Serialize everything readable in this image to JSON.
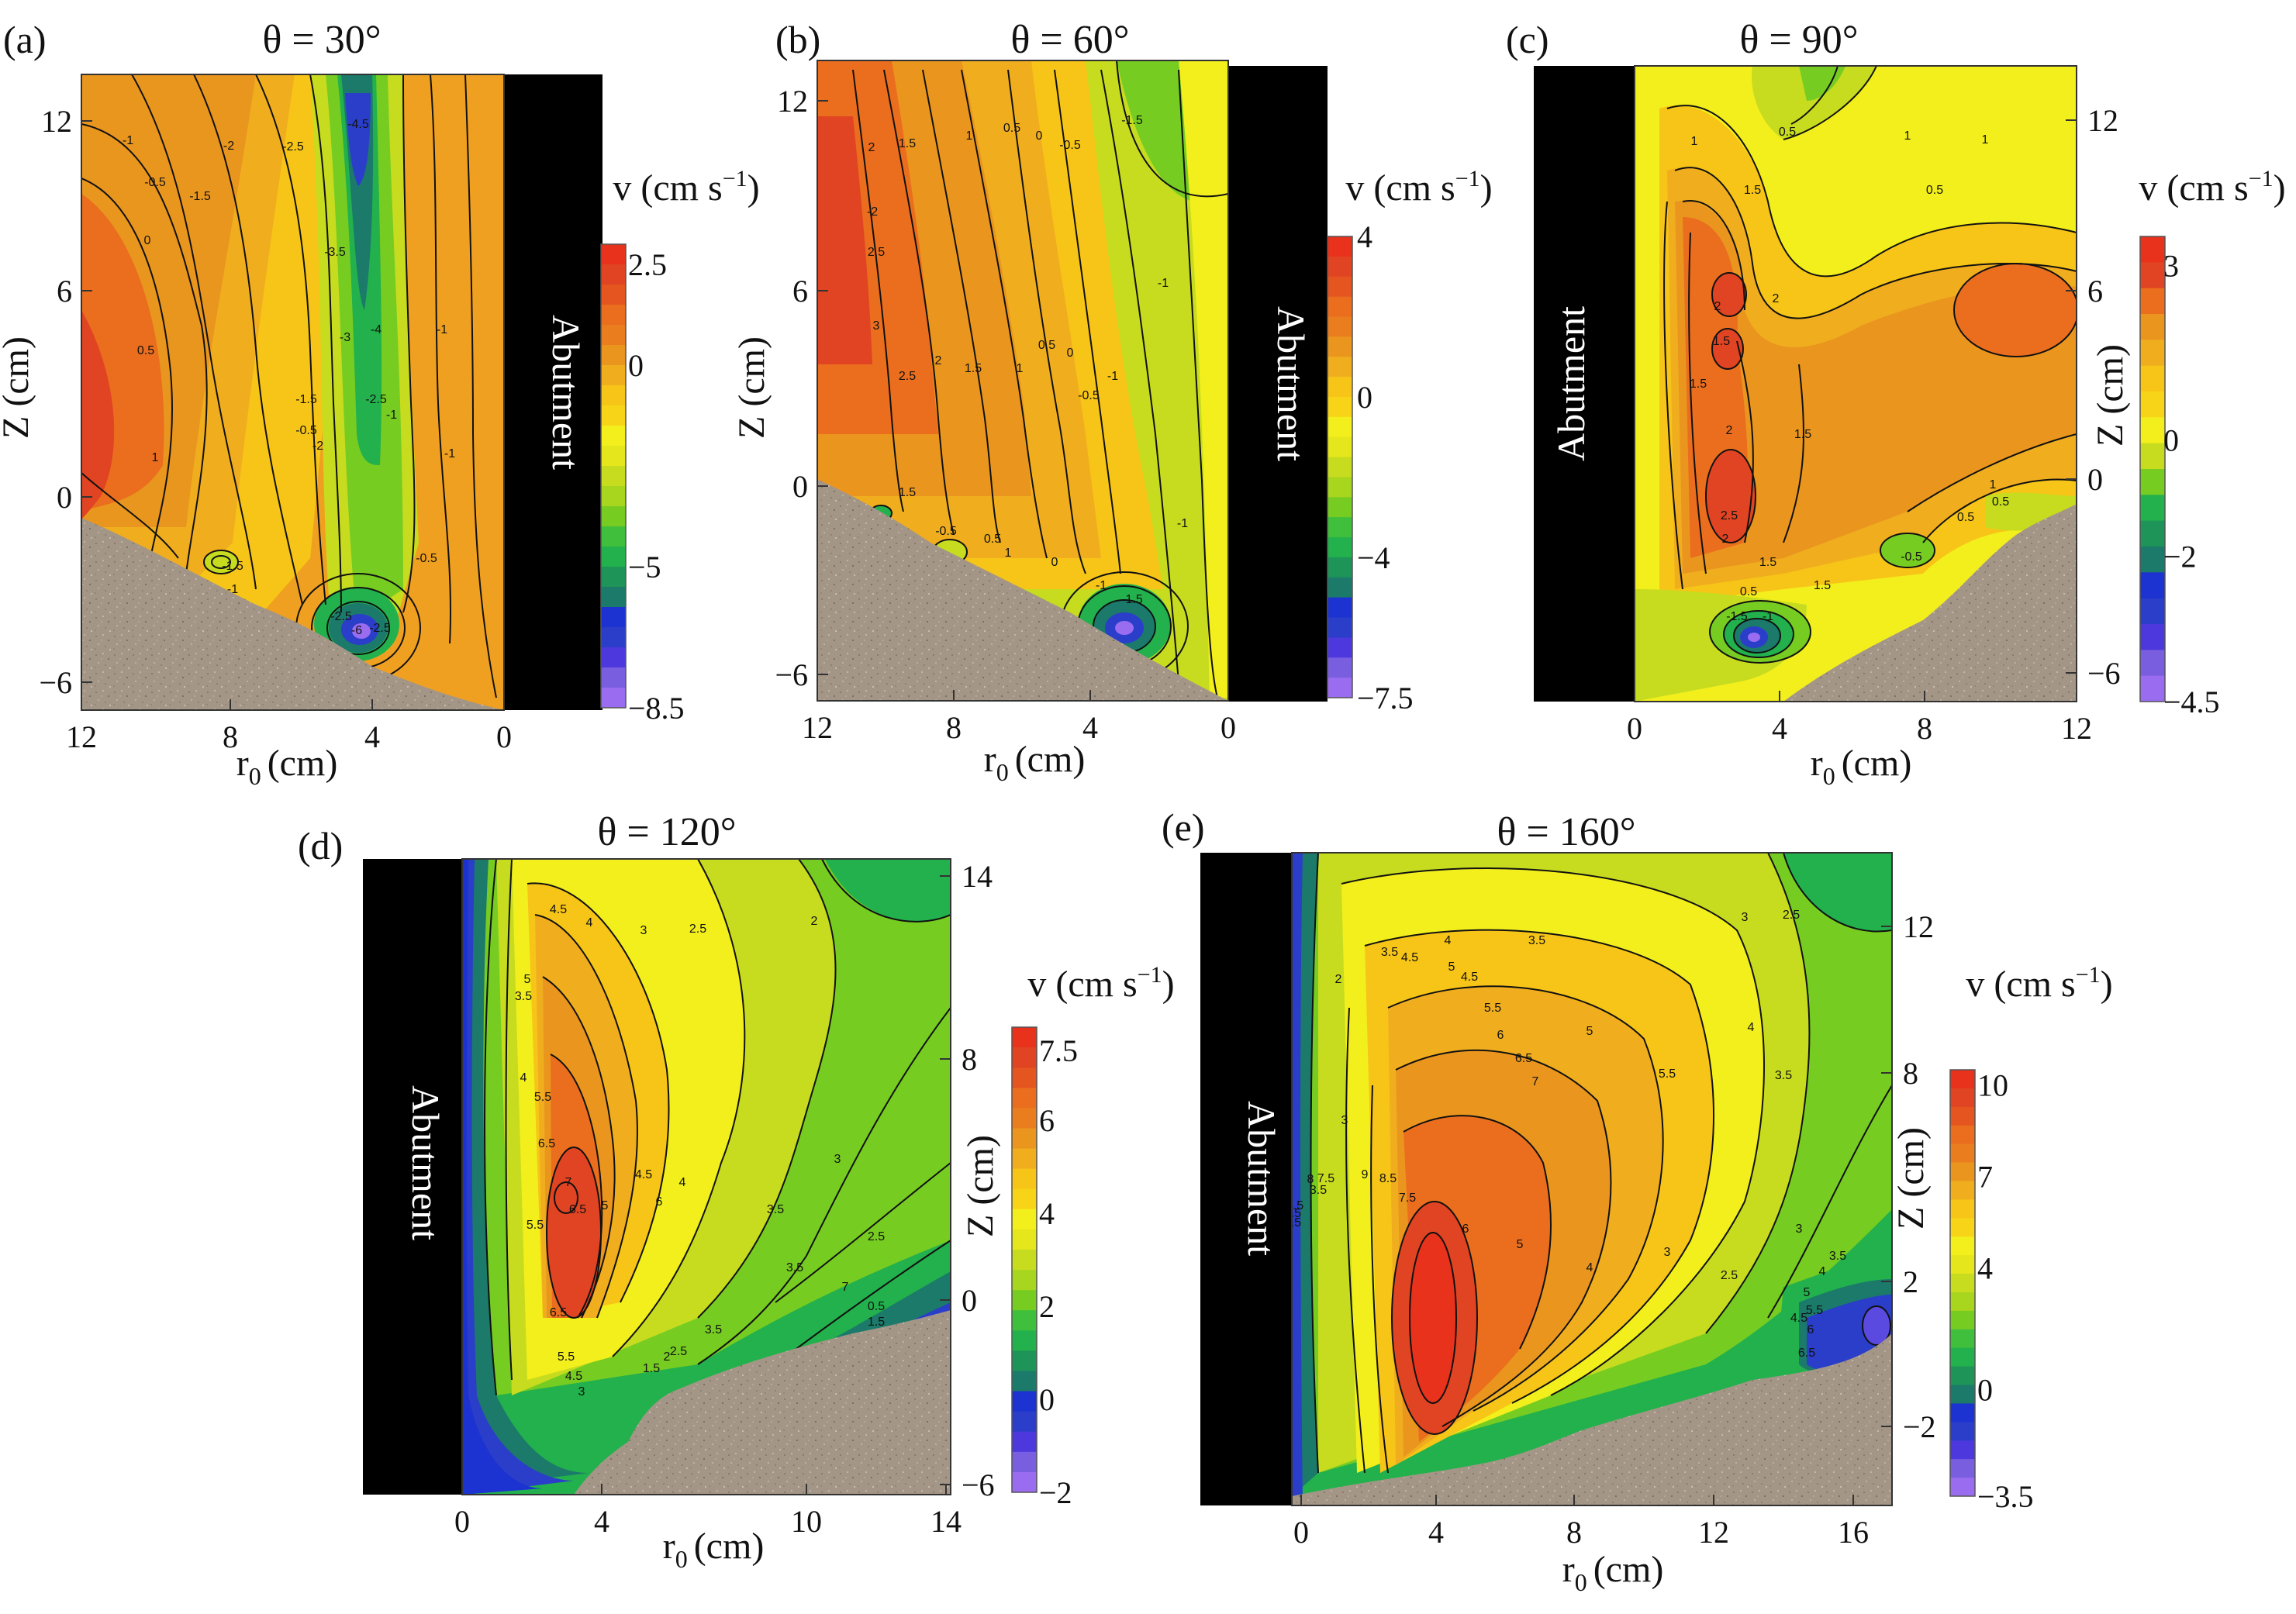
{
  "figure": {
    "quantity_symbol": "v",
    "quantity_unit": "cm s",
    "unit_exponent": "−1"
  },
  "abutment_label": "Abutment",
  "chart_data": [
    {
      "type": "contour",
      "panel_label": "(a)",
      "title": "θ = 30°",
      "xlabel": "r",
      "xlabel_sub": "0",
      "xlabel_unit": "(cm)",
      "ylabel": "Z (cm)",
      "x_ticks": [
        "12",
        "8",
        "4",
        "0"
      ],
      "y_ticks": [
        "12",
        "6",
        "0",
        "−6"
      ],
      "colorbar_ticks": [
        "2.5",
        "0",
        "−5",
        "−8.5"
      ],
      "colorbar_range": [
        -8.5,
        3.0
      ],
      "contour_labels": [
        "-1",
        "-2",
        "-2.5",
        "-4.5",
        "-1.5",
        "-0.5",
        "0",
        "0.5",
        "1",
        "-3.5",
        "-3",
        "-4",
        "-2.5",
        "-1",
        "-1.5",
        "-0.5",
        "-2",
        "-1",
        "-1",
        "-0.5",
        "-1.5",
        "-1",
        "-2.5",
        "-6",
        "-2.5"
      ]
    },
    {
      "type": "contour",
      "panel_label": "(b)",
      "title": "θ = 60°",
      "xlabel": "r",
      "xlabel_sub": "0",
      "xlabel_unit": "(cm)",
      "ylabel": "Z (cm)",
      "x_ticks": [
        "12",
        "8",
        "4",
        "0"
      ],
      "y_ticks": [
        "12",
        "6",
        "0",
        "−6"
      ],
      "colorbar_ticks": [
        "4",
        "0",
        "−4",
        "−7.5"
      ],
      "colorbar_range": [
        -7.5,
        4.0
      ],
      "contour_labels": [
        "2",
        "1.5",
        "1",
        "0.5",
        "0",
        "-0.5",
        "-1.5",
        "-2",
        "2.5",
        "3",
        "2.5",
        "2",
        "1.5",
        "1",
        "0.5",
        "0",
        "-0.5",
        "-1",
        "-1",
        "1.5",
        "-0.5",
        "0.5",
        "1",
        "0",
        "-1",
        "-1.5",
        "-1"
      ]
    },
    {
      "type": "contour",
      "panel_label": "(c)",
      "title": "θ = 90°",
      "xlabel": "r",
      "xlabel_sub": "0",
      "xlabel_unit": "(cm)",
      "ylabel": "Z (cm)",
      "x_ticks": [
        "0",
        "4",
        "8",
        "12"
      ],
      "y_ticks": [
        "12",
        "6",
        "0",
        "−6"
      ],
      "colorbar_ticks": [
        "3",
        "0",
        "−2",
        "−4.5"
      ],
      "colorbar_range": [
        -4.5,
        3.5
      ],
      "contour_labels": [
        "0.5",
        "1",
        "1.5",
        "1",
        "0.5",
        "1",
        "2",
        "2",
        "1.5",
        "2",
        "1.5",
        "2.5",
        "2",
        "1.5",
        "1.5",
        "1",
        "0.5",
        "0.5",
        "-0.5",
        "-1.5",
        "-1",
        "0.5",
        "1.5"
      ]
    },
    {
      "type": "contour",
      "panel_label": "(d)",
      "title": "θ = 120°",
      "xlabel": "r",
      "xlabel_sub": "0",
      "xlabel_unit": "(cm)",
      "ylabel": "Z (cm)",
      "x_ticks": [
        "0",
        "4",
        "10",
        "14"
      ],
      "y_ticks": [
        "14",
        "8",
        "0",
        "−6"
      ],
      "colorbar_ticks": [
        "7.5",
        "6",
        "4",
        "2",
        "0",
        "−2"
      ],
      "colorbar_range": [
        -2.0,
        8.0
      ],
      "contour_labels": [
        "4.5",
        "4",
        "3",
        "2.5",
        "2",
        "5",
        "3.5",
        "4",
        "5.5",
        "6.5",
        "7",
        "6.5",
        "5.5",
        "4.5",
        "6",
        "5",
        "4",
        "3.5",
        "3",
        "2.5",
        "3.5",
        "7",
        "6.5",
        "5.5",
        "4.5",
        "3",
        "1.5",
        "2",
        "2.5",
        "3.5",
        "1",
        "1.5",
        "0.5"
      ]
    },
    {
      "type": "contour",
      "panel_label": "(e)",
      "title": "θ = 160°",
      "xlabel": "r",
      "xlabel_sub": "0",
      "xlabel_unit": "(cm)",
      "ylabel": "Z (cm)",
      "x_ticks": [
        "0",
        "4",
        "8",
        "12",
        "16"
      ],
      "y_ticks": [
        "12",
        "8",
        "2",
        "−2"
      ],
      "colorbar_ticks": [
        "10",
        "7",
        "4",
        "0",
        "−3.5"
      ],
      "colorbar_range": [
        -3.5,
        10.5
      ],
      "contour_labels": [
        "3.5",
        "4",
        "3.5",
        "3",
        "2.5",
        "2",
        "4.5",
        "5",
        "4.5",
        "5.5",
        "6",
        "6.5",
        "7",
        "5",
        "5.5",
        "4",
        "3.5",
        "3",
        "3.5",
        "4.5",
        "5.5",
        "6.5",
        "8",
        "7.5",
        "9",
        "8.5",
        "7.5",
        "6",
        "5",
        "4",
        "3",
        "2.5",
        "3",
        "6.5",
        "5.5",
        "6",
        "4.5",
        "5",
        "4",
        "3.5"
      ]
    }
  ]
}
